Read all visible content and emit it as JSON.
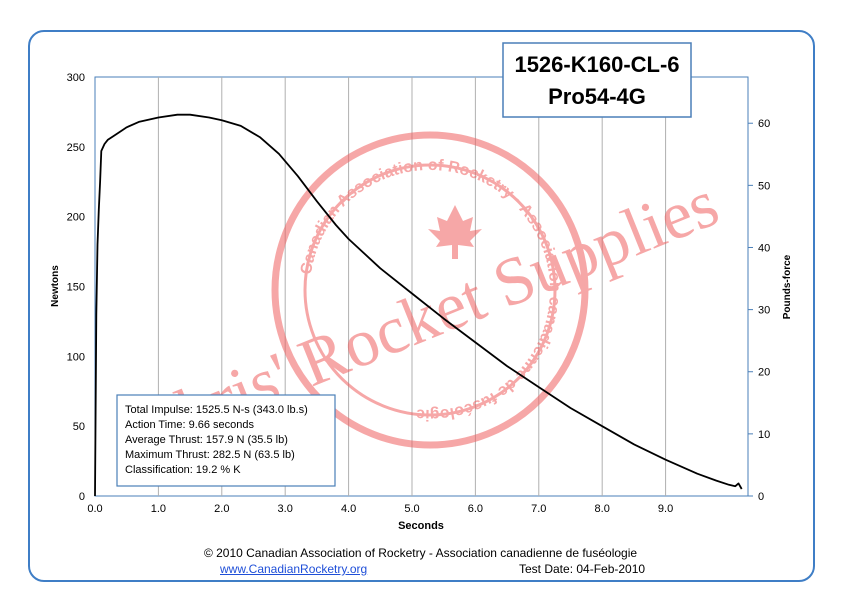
{
  "chart_data": {
    "type": "line",
    "title_line1": "1526-K160-CL-6",
    "title_line2": "Pro54-4G",
    "xlabel": "Seconds",
    "ylabel": "Newtons",
    "y2label": "Pounds-force",
    "xlim": [
      0,
      10.3
    ],
    "ylim": [
      0,
      300
    ],
    "y2lim": [
      0,
      67.44
    ],
    "x_ticks": [
      "0.0",
      "1.0",
      "2.0",
      "3.0",
      "4.0",
      "5.0",
      "6.0",
      "7.0",
      "8.0",
      "9.0"
    ],
    "y_ticks": [
      "0",
      "50",
      "100",
      "150",
      "200",
      "250",
      "300"
    ],
    "y2_ticks": [
      "0",
      "10",
      "20",
      "30",
      "40",
      "50",
      "60"
    ],
    "grid": true,
    "series": [
      {
        "x": [
          0.0,
          0.02,
          0.04,
          0.06,
          0.08,
          0.1,
          0.15,
          0.2,
          0.3,
          0.4,
          0.5,
          0.7,
          1.0,
          1.3,
          1.5,
          1.8,
          2.0,
          2.3,
          2.6,
          2.9,
          3.2,
          3.5,
          3.8,
          4.0,
          4.5,
          5.0,
          5.5,
          6.0,
          6.5,
          7.0,
          7.5,
          8.0,
          8.5,
          9.0,
          9.5,
          9.8,
          10.0,
          10.1,
          10.15,
          10.2
        ],
        "y": [
          0,
          130,
          180,
          205,
          225,
          247,
          252,
          255,
          258,
          261,
          264,
          268,
          271,
          273,
          273,
          271,
          269,
          265,
          257,
          245,
          229,
          211,
          194,
          184,
          163,
          145,
          127,
          110,
          93,
          78,
          63,
          50,
          37,
          26,
          16,
          11,
          8,
          7,
          9,
          5
        ]
      }
    ]
  },
  "stats": {
    "line1": "Total Impulse: 1525.5 N-s (343.0 lb.s)",
    "line2": "Action Time: 9.66 seconds",
    "line3": "Average Thrust: 157.9 N (35.5 lb)",
    "line4": "Maximum Thrust: 282.5 N (63.5 lb)",
    "line5": "Classification: 19.2 % K"
  },
  "watermark": {
    "main_text": "Chris' Rocket Supplies",
    "seal_text": "Canadian Association of Rocketry · Association canadienne de fuséologie"
  },
  "footer": {
    "copyright": "© 2010 Canadian Association of Rocketry - Association canadienne de fuséologie",
    "link": "www.CanadianRocketry.org",
    "test_date": "Test Date: 04-Feb-2010"
  },
  "colors": {
    "frame": "#3f7ec6",
    "plot_border": "#4a7fb8",
    "grid": "#b0b0b0",
    "line": "#000000",
    "watermark": "#f06060"
  }
}
